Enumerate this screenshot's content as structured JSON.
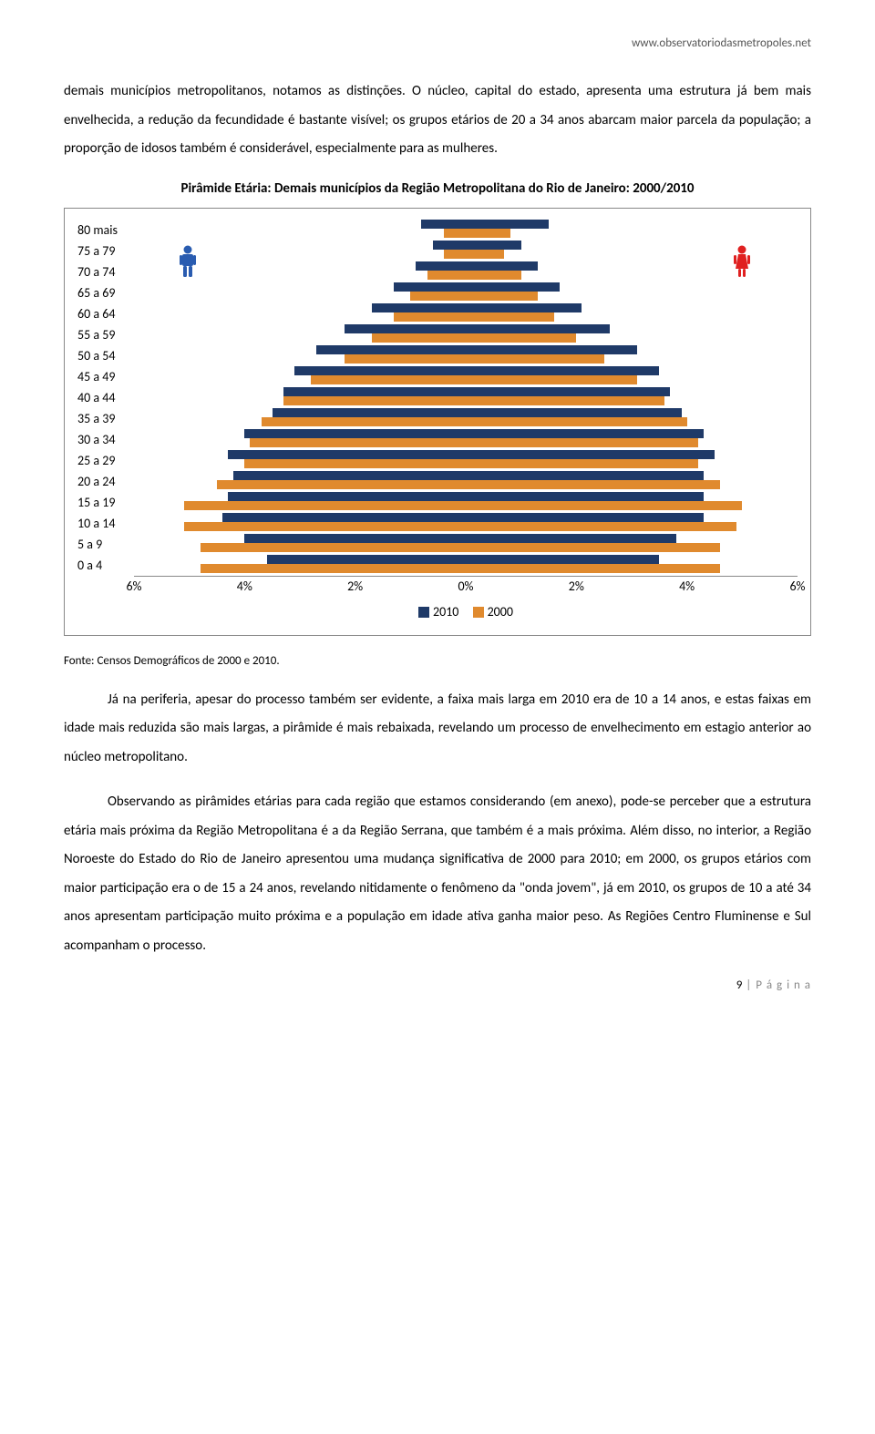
{
  "header": {
    "url": "www.observatoriodasmetropoles.net"
  },
  "paragraphs": {
    "p1": "demais municípios metropolitanos, notamos as distinções.  O núcleo, capital do estado, apresenta uma estrutura já bem mais envelhecida, a redução da fecundidade é bastante visível; os grupos etários de 20 a 34 anos abarcam maior parcela da população; a proporção de idosos também é considerável, especialmente para as mulheres.",
    "p2": "Já na periferia, apesar do processo também ser evidente, a faixa mais larga em 2010 era de 10 a 14 anos, e estas faixas em idade mais reduzida são mais largas, a pirâmide é mais rebaixada, revelando um processo de envelhecimento em estagio anterior ao núcleo metropolitano.",
    "p3": "Observando as pirâmides etárias para cada região que estamos considerando (em anexo), pode-se perceber que a estrutura etária mais próxima da Região Metropolitana é a da Região Serrana, que também é a mais próxima. Além disso, no interior, a Região Noroeste do Estado do Rio de Janeiro apresentou uma mudança significativa de 2000 para 2010; em 2000, os grupos etários com maior participação era o de 15 a 24 anos, revelando nitidamente o fenômeno da \"onda jovem\", já em 2010, os grupos de 10 a até 34 anos apresentam participação muito próxima e a população em idade ativa ganha maior peso. As Regiões Centro Fluminense e Sul acompanham o processo."
  },
  "chart": {
    "title": "Pirâmide Etária: Demais municípios da Região Metropolitana do Rio de Janeiro: 2000/2010",
    "type": "population-pyramid",
    "age_labels": [
      "80 mais",
      "75 a 79",
      "70 a 74",
      "65 a 69",
      "60 a 64",
      "55 a 59",
      "50 a 54",
      "45 a 49",
      "40 a 44",
      "35 a 39",
      "30 a 34",
      "25 a 29",
      "20 a 24",
      "15 a 19",
      "10 a 14",
      "5 a 9",
      "0 a 4"
    ],
    "series": {
      "s2010": {
        "label": "2010",
        "color": "#1f3a68",
        "male": [
          0.8,
          0.6,
          0.9,
          1.3,
          1.7,
          2.2,
          2.7,
          3.1,
          3.3,
          3.5,
          4.0,
          4.3,
          4.2,
          4.3,
          4.4,
          4.0,
          3.6
        ],
        "female": [
          1.5,
          1.0,
          1.3,
          1.7,
          2.1,
          2.6,
          3.1,
          3.5,
          3.7,
          3.9,
          4.3,
          4.5,
          4.3,
          4.3,
          4.3,
          3.8,
          3.5
        ]
      },
      "s2000": {
        "label": "2000",
        "color": "#e08a2e",
        "male": [
          0.4,
          0.4,
          0.7,
          1.0,
          1.3,
          1.7,
          2.2,
          2.8,
          3.3,
          3.7,
          3.9,
          4.0,
          4.5,
          5.1,
          5.1,
          4.8,
          4.8
        ],
        "female": [
          0.8,
          0.7,
          1.0,
          1.3,
          1.6,
          2.0,
          2.5,
          3.1,
          3.6,
          4.0,
          4.2,
          4.2,
          4.6,
          5.0,
          4.9,
          4.6,
          4.6
        ]
      }
    },
    "x_ticks": [
      "6%",
      "4%",
      "2%",
      "0%",
      "2%",
      "4%",
      "6%"
    ],
    "x_tick_positions": [
      0,
      16.67,
      33.33,
      50,
      66.67,
      83.33,
      100
    ],
    "x_max": 6,
    "icon_male_color": "#2a5cb0",
    "icon_female_color": "#e02020",
    "grid_color": "#888888",
    "background": "#ffffff",
    "label_fontsize": 14
  },
  "source": "Fonte: Censos Demográficos de 2000 e 2010.",
  "footer": {
    "page_num": "9",
    "page_label": "P á g i n a"
  }
}
